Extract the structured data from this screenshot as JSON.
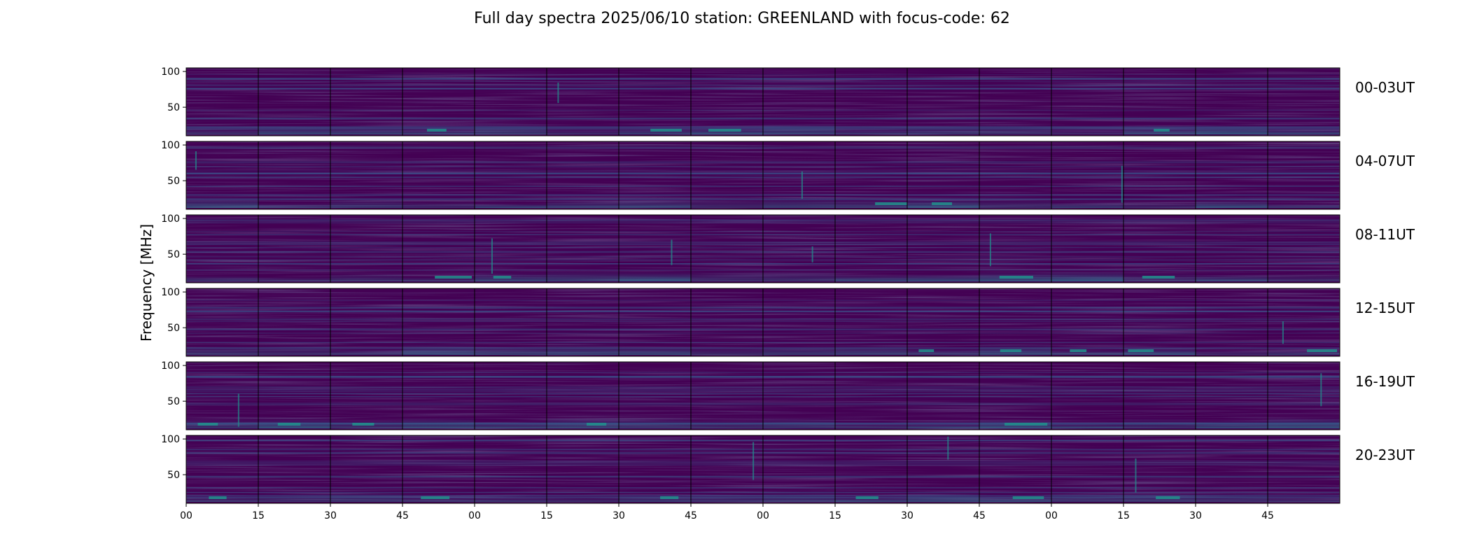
{
  "chart_data": {
    "type": "heatmap",
    "title": "Full day spectra 2025/06/10 station: GREENLAND with focus-code: 62",
    "ylabel": "Frequency [MHz]",
    "ylim": [
      10,
      105
    ],
    "y_ticks": [
      50,
      100
    ],
    "x_tick_labels": [
      "00",
      "15",
      "30",
      "45",
      "00",
      "15",
      "30",
      "45",
      "00",
      "15",
      "30",
      "45",
      "00",
      "15",
      "30",
      "45"
    ],
    "panels_per_row": 16,
    "colormap": [
      "#440154",
      "#3b528b",
      "#21918c",
      "#5ec962"
    ],
    "rows": [
      {
        "label": "00-03UT"
      },
      {
        "label": "04-07UT"
      },
      {
        "label": "08-11UT"
      },
      {
        "label": "12-15UT"
      },
      {
        "label": "16-19UT"
      },
      {
        "label": "20-23UT"
      }
    ]
  }
}
